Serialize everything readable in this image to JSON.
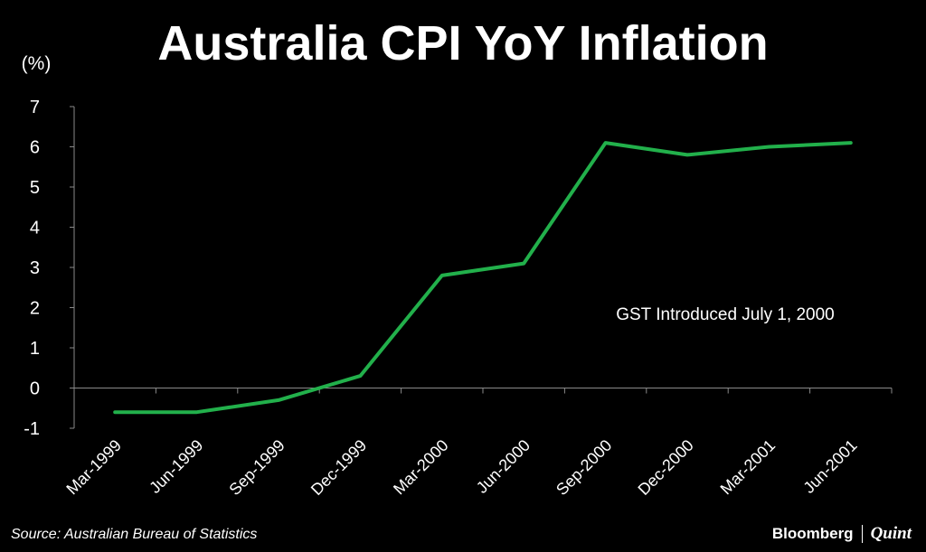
{
  "chart_data": {
    "type": "line",
    "title": "Australia CPI YoY Inflation",
    "ylabel": "(%)",
    "xlabel": "",
    "categories": [
      "Mar-1999",
      "Jun-1999",
      "Sep-1999",
      "Dec-1999",
      "Mar-2000",
      "Jun-2000",
      "Sep-2000",
      "Dec-2000",
      "Mar-2001",
      "Jun-2001"
    ],
    "series": [
      {
        "values": [
          -0.6,
          -0.6,
          -0.3,
          0.3,
          2.8,
          3.1,
          6.1,
          5.8,
          6.0,
          6.1
        ],
        "color": "#22b04b"
      }
    ],
    "ylim": [
      -1,
      7
    ],
    "yticks": [
      7,
      6,
      5,
      4,
      3,
      2,
      1,
      0,
      -1
    ],
    "annotation": "GST Introduced July 1, 2000",
    "grid": false
  },
  "footer": {
    "source": "Source: Australian Bureau of Statistics",
    "brand_primary": "Bloomberg",
    "brand_secondary": "Quint"
  }
}
